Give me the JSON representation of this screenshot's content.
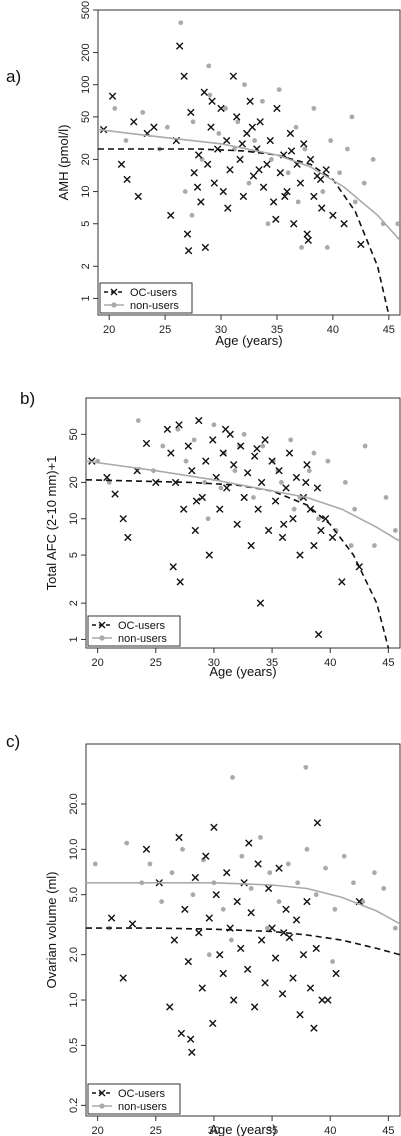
{
  "chart_data": [
    {
      "type": "scatter",
      "panel_label": "a)",
      "xlabel": "Age (years)",
      "ylabel": "AMH (pmol/l)",
      "yscale": "log",
      "xlim": [
        19,
        46
      ],
      "ylim": [
        0.7,
        500
      ],
      "xticks": [
        20,
        25,
        30,
        35,
        40,
        45
      ],
      "xticklabels": [
        "20",
        "25",
        "30",
        "35",
        "40",
        "45"
      ],
      "yticks": [
        1,
        2,
        5,
        10,
        20,
        50,
        100,
        200,
        500
      ],
      "yticklabels": [
        "1",
        "2",
        "5",
        "10",
        "20",
        "50",
        "100",
        "200",
        "500"
      ],
      "legend": {
        "position": "bottom-left",
        "entries": [
          "OC-users",
          "non-users"
        ]
      },
      "series": [
        {
          "name": "OC-users",
          "marker": "x",
          "color": "#111111",
          "x": [
            19.5,
            20.3,
            21.1,
            21.6,
            22.2,
            22.6,
            23.4,
            24.0,
            25.5,
            26.0,
            26.3,
            26.7,
            27.0,
            27.1,
            27.3,
            27.6,
            28.0,
            28.2,
            28.5,
            28.8,
            29.1,
            29.4,
            29.7,
            30.0,
            30.2,
            30.5,
            30.8,
            31.1,
            31.4,
            31.7,
            32.0,
            32.3,
            32.6,
            32.9,
            33.2,
            33.5,
            33.8,
            34.1,
            34.4,
            34.7,
            35.0,
            35.3,
            35.6,
            35.9,
            36.2,
            36.5,
            36.8,
            37.1,
            37.4,
            37.7,
            38.0,
            38.3,
            38.6,
            39.0,
            39.4,
            40.0,
            41.0,
            42.5,
            27.9,
            29.2,
            30.6,
            31.9,
            33.4,
            34.9,
            36.3,
            37.8,
            28.6,
            32.8,
            35.7,
            38.9
          ],
          "y": [
            38,
            78,
            18,
            13,
            45,
            9,
            35,
            40,
            6,
            30,
            230,
            120,
            4,
            2.8,
            55,
            15,
            22,
            8,
            85,
            18,
            40,
            12,
            25,
            60,
            10,
            30,
            16,
            120,
            50,
            20,
            9,
            35,
            70,
            14,
            25,
            45,
            11,
            18,
            30,
            8,
            60,
            15,
            22,
            10,
            35,
            5,
            18,
            12,
            28,
            4,
            20,
            9,
            14,
            7,
            16,
            6,
            5,
            3.2,
            11,
            70,
            7,
            28,
            16,
            5.5,
            24,
            3.5,
            3,
            40,
            9,
            13
          ]
        },
        {
          "name": "non-users",
          "marker": "circle",
          "color": "#aaaaaa",
          "x": [
            20.5,
            21.5,
            23.0,
            24.5,
            25.2,
            26.4,
            27.5,
            28.3,
            29.0,
            29.8,
            30.4,
            31.2,
            32.1,
            33.0,
            33.7,
            34.5,
            35.2,
            36.0,
            36.7,
            37.5,
            38.3,
            39.1,
            39.8,
            40.6,
            41.3,
            42.0,
            42.8,
            43.6,
            44.5,
            45.8,
            26.8,
            28.9,
            31.5,
            34.2,
            36.9,
            39.5,
            41.7,
            27.4,
            32.5,
            37.2
          ],
          "y": [
            60,
            30,
            55,
            25,
            40,
            380,
            45,
            20,
            80,
            35,
            60,
            25,
            100,
            30,
            70,
            20,
            90,
            15,
            40,
            25,
            60,
            10,
            30,
            15,
            25,
            8,
            12,
            20,
            5,
            5,
            10,
            150,
            45,
            5,
            8,
            3,
            50,
            6,
            12,
            3
          ]
        }
      ],
      "fits": [
        {
          "name": "OC-users",
          "style": "dashed",
          "x": [
            19,
            28,
            32,
            35,
            38,
            40,
            42,
            44,
            45
          ],
          "y": [
            25,
            25,
            24,
            22,
            18,
            13,
            6.5,
            2,
            0.7
          ]
        },
        {
          "name": "non-users",
          "style": "solid",
          "x": [
            19,
            25,
            30,
            35,
            38,
            41,
            44,
            46
          ],
          "y": [
            38,
            32,
            28,
            22,
            17,
            11,
            6,
            3.5
          ]
        }
      ]
    },
    {
      "type": "scatter",
      "panel_label": "b)",
      "xlabel": "Age (years)",
      "ylabel": "Total AFC (2-10 mm)+1",
      "yscale": "log",
      "xlim": [
        19,
        46
      ],
      "ylim": [
        0.85,
        100
      ],
      "xticks": [
        20,
        25,
        30,
        35,
        40,
        45
      ],
      "xticklabels": [
        "20",
        "25",
        "30",
        "35",
        "40",
        "45"
      ],
      "yticks": [
        1,
        2,
        5,
        10,
        20,
        50
      ],
      "yticklabels": [
        "1",
        "2",
        "5",
        "10",
        "20",
        "50"
      ],
      "legend": {
        "position": "bottom-left",
        "entries": [
          "OC-users",
          "non-users"
        ]
      },
      "series": [
        {
          "name": "OC-users",
          "marker": "x",
          "color": "#111111",
          "x": [
            19.5,
            20.8,
            21.5,
            22.2,
            22.6,
            23.4,
            24.2,
            25.0,
            26.0,
            26.3,
            26.7,
            27.0,
            27.1,
            27.4,
            27.8,
            28.1,
            28.4,
            28.7,
            29.0,
            29.3,
            29.6,
            29.9,
            30.2,
            30.5,
            30.8,
            31.1,
            31.4,
            31.7,
            32.0,
            32.3,
            32.6,
            32.9,
            33.2,
            33.5,
            33.8,
            34.1,
            34.4,
            34.7,
            35.0,
            35.3,
            35.6,
            35.9,
            36.2,
            36.5,
            36.8,
            37.1,
            37.4,
            37.7,
            38.0,
            38.3,
            38.6,
            38.9,
            39.2,
            39.6,
            40.2,
            41.0,
            42.5,
            26.5,
            28.5,
            31.0,
            33.7,
            36.0,
            37.9,
            34.0,
            39.0
          ],
          "y": [
            30,
            22,
            16,
            10,
            7,
            25,
            42,
            20,
            55,
            35,
            20,
            60,
            3,
            12,
            40,
            25,
            8,
            65,
            15,
            30,
            5,
            45,
            22,
            12,
            35,
            18,
            50,
            28,
            9,
            40,
            15,
            24,
            6,
            33,
            12,
            20,
            45,
            8,
            30,
            14,
            25,
            7,
            18,
            35,
            10,
            22,
            5,
            15,
            28,
            12,
            6,
            18,
            8,
            10,
            7,
            3,
            4,
            4,
            14,
            55,
            38,
            9,
            20,
            2,
            1.1
          ]
        },
        {
          "name": "non-users",
          "marker": "circle",
          "color": "#aaaaaa",
          "x": [
            20.0,
            21.0,
            23.5,
            24.8,
            25.6,
            26.9,
            27.6,
            28.3,
            29.2,
            30.0,
            30.9,
            31.8,
            32.6,
            33.4,
            34.2,
            35.1,
            35.8,
            36.6,
            37.4,
            38.2,
            39.0,
            39.8,
            40.5,
            41.3,
            42.1,
            43.0,
            43.8,
            44.8,
            45.6,
            29.5,
            32.2,
            35.5,
            38.6,
            41.8,
            30.6,
            36.9
          ],
          "y": [
            30,
            20,
            65,
            25,
            40,
            55,
            30,
            45,
            20,
            60,
            35,
            25,
            50,
            15,
            40,
            30,
            20,
            45,
            15,
            25,
            10,
            30,
            8,
            20,
            12,
            40,
            6,
            15,
            8,
            10,
            40,
            25,
            35,
            6,
            18,
            12
          ]
        }
      ],
      "fits": [
        {
          "name": "OC-users",
          "style": "dashed",
          "x": [
            19,
            28,
            32,
            35,
            38,
            40,
            42,
            44,
            45
          ],
          "y": [
            21,
            20,
            19,
            17,
            13,
            9,
            5,
            2,
            0.85
          ]
        },
        {
          "name": "non-users",
          "style": "solid",
          "x": [
            19,
            25,
            30,
            35,
            38,
            41,
            44,
            46
          ],
          "y": [
            30,
            25,
            21,
            17,
            15,
            12,
            8.5,
            6.5
          ]
        }
      ]
    },
    {
      "type": "scatter",
      "panel_label": "c)",
      "xlabel": "Age (years)",
      "ylabel": "Ovarian volume (ml)",
      "yscale": "log",
      "xlim": [
        19,
        46
      ],
      "ylim": [
        0.17,
        50
      ],
      "xticks": [
        20,
        25,
        30,
        35,
        40,
        45
      ],
      "xticklabels": [
        "20",
        "25",
        "30",
        "35",
        "40",
        "45"
      ],
      "yticks": [
        0.2,
        0.5,
        1.0,
        2.0,
        5.0,
        10.0,
        20.0
      ],
      "yticklabels": [
        "0.2",
        "0.5",
        "1.0",
        "2.0",
        "5.0",
        "10.0",
        "20.0"
      ],
      "legend": {
        "position": "bottom-left",
        "entries": [
          "OC-users",
          "non-users"
        ]
      },
      "series": [
        {
          "name": "OC-users",
          "marker": "x",
          "color": "#111111",
          "x": [
            21.2,
            22.2,
            23.0,
            24.2,
            25.3,
            26.2,
            26.6,
            27.0,
            27.2,
            27.5,
            27.8,
            28.1,
            28.4,
            28.7,
            29.0,
            29.3,
            29.6,
            29.9,
            30.2,
            30.5,
            30.8,
            31.1,
            31.4,
            31.7,
            32.0,
            32.3,
            32.6,
            32.9,
            33.2,
            33.5,
            33.8,
            34.1,
            34.4,
            34.7,
            35.0,
            35.3,
            35.6,
            35.9,
            36.2,
            36.5,
            36.8,
            37.1,
            37.4,
            37.7,
            38.0,
            38.3,
            38.6,
            38.9,
            39.3,
            39.8,
            40.5,
            42.5,
            28.0,
            30.0,
            33.0,
            36.0,
            38.8
          ],
          "y": [
            3.5,
            1.4,
            3.2,
            10.0,
            6.0,
            0.9,
            2.5,
            12.0,
            0.6,
            4.0,
            1.8,
            0.45,
            6.5,
            2.8,
            1.2,
            9.0,
            3.5,
            0.7,
            5.0,
            2.0,
            1.5,
            7.0,
            3.0,
            1.0,
            4.5,
            2.2,
            6.0,
            1.6,
            3.8,
            0.9,
            8.0,
            2.5,
            1.3,
            5.5,
            3.0,
            1.9,
            7.5,
            1.1,
            4.0,
            2.6,
            1.4,
            3.4,
            0.8,
            2.0,
            4.5,
            1.2,
            0.65,
            15.0,
            1.0,
            1.0,
            1.5,
            4.5,
            0.55,
            14.0,
            11.0,
            2.8,
            2.2
          ]
        },
        {
          "name": "non-users",
          "marker": "circle",
          "color": "#aaaaaa",
          "x": [
            19.8,
            21.0,
            22.5,
            23.8,
            24.5,
            25.5,
            26.4,
            27.3,
            28.2,
            29.1,
            30.0,
            30.8,
            31.6,
            32.4,
            33.2,
            34.0,
            34.8,
            35.6,
            36.4,
            37.2,
            38.0,
            38.8,
            39.6,
            40.4,
            41.2,
            42.0,
            42.8,
            43.8,
            44.6,
            45.6,
            31.5,
            37.9,
            29.6,
            34.6,
            40.2
          ],
          "y": [
            8.0,
            3.0,
            11.0,
            6.0,
            8.0,
            4.5,
            7.0,
            10.0,
            5.0,
            8.5,
            6.0,
            4.0,
            30.0,
            9.0,
            5.5,
            12.0,
            7.0,
            4.5,
            8.0,
            6.0,
            10.0,
            5.0,
            7.5,
            4.0,
            9.0,
            6.0,
            4.5,
            7.0,
            5.5,
            3.0,
            2.5,
            35.0,
            2.0,
            3.0,
            1.8
          ]
        }
      ],
      "fits": [
        {
          "name": "OC-users",
          "style": "dashed",
          "x": [
            19,
            25,
            30,
            35,
            38,
            41,
            44,
            46
          ],
          "y": [
            3.0,
            3.0,
            2.95,
            2.85,
            2.7,
            2.5,
            2.2,
            2.0
          ]
        },
        {
          "name": "non-users",
          "style": "solid",
          "x": [
            19,
            25,
            30,
            35,
            38,
            41,
            44,
            46
          ],
          "y": [
            6.0,
            6.0,
            6.0,
            5.8,
            5.5,
            4.8,
            3.9,
            3.2
          ]
        }
      ]
    }
  ]
}
